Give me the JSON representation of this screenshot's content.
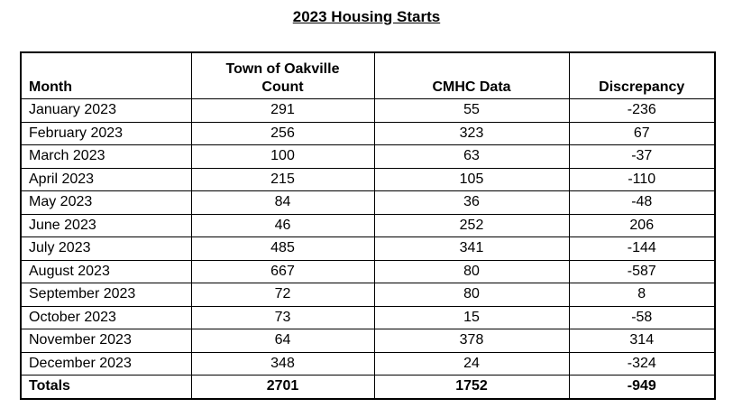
{
  "title": "2023 Housing Starts",
  "table": {
    "headers": {
      "month": "Month",
      "oakville": "Town of Oakville\nCount",
      "cmhc": "CMHC Data",
      "discrepancy": "Discrepancy"
    },
    "rows": [
      [
        "January 2023",
        "291",
        "55",
        "-236"
      ],
      [
        "February 2023",
        "256",
        "323",
        "67"
      ],
      [
        "March 2023",
        "100",
        "63",
        "-37"
      ],
      [
        "April 2023",
        "215",
        "105",
        "-110"
      ],
      [
        "May 2023",
        "84",
        "36",
        "-48"
      ],
      [
        "June 2023",
        "46",
        "252",
        "206"
      ],
      [
        "July 2023",
        "485",
        "341",
        "-144"
      ],
      [
        "August 2023",
        "667",
        "80",
        "-587"
      ],
      [
        "September 2023",
        "72",
        "80",
        "8"
      ],
      [
        "October 2023",
        "73",
        "15",
        "-58"
      ],
      [
        "November 2023",
        "64",
        "378",
        "314"
      ],
      [
        "December 2023",
        "348",
        "24",
        "-324"
      ]
    ],
    "totals": [
      "Totals",
      "2701",
      "1752",
      "-949"
    ]
  }
}
